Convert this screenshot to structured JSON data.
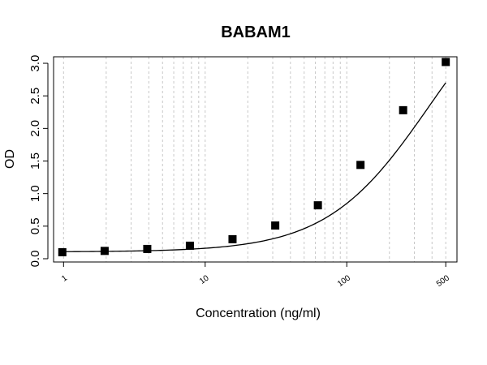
{
  "chart_data": {
    "type": "scatter",
    "title": "BABAM1",
    "xlabel": "Concentration (ng/ml)",
    "ylabel": "OD",
    "x_scale": "log",
    "xlim": [
      0.85,
      600
    ],
    "ylim": [
      -0.05,
      3.1
    ],
    "xticks": [
      {
        "value": 1,
        "label": "1"
      },
      {
        "value": 10,
        "label": "10"
      },
      {
        "value": 100,
        "label": "100"
      },
      {
        "value": 500,
        "label": "500"
      }
    ],
    "minor_xticks": [
      2,
      3,
      4,
      5,
      6,
      7,
      8,
      9,
      20,
      30,
      40,
      50,
      60,
      70,
      80,
      90,
      200,
      300,
      400
    ],
    "yticks": [
      {
        "value": 0.0,
        "label": "0.0"
      },
      {
        "value": 0.5,
        "label": "0.5"
      },
      {
        "value": 1.0,
        "label": "1.0"
      },
      {
        "value": 1.5,
        "label": "1.5"
      },
      {
        "value": 2.0,
        "label": "2.0"
      },
      {
        "value": 2.5,
        "label": "2.5"
      },
      {
        "value": 3.0,
        "label": "3.0"
      }
    ],
    "grid": "vertical-dashed",
    "series": [
      {
        "x": [
          0.98,
          1.95,
          3.9,
          7.8,
          15.6,
          31.25,
          62.5,
          125,
          250,
          500
        ],
        "y": [
          0.1,
          0.12,
          0.15,
          0.2,
          0.3,
          0.51,
          0.82,
          1.44,
          2.28,
          3.02
        ]
      }
    ],
    "fit_curve": {
      "model": "4PL",
      "bottom": 0.105,
      "top": 4.6,
      "ec50": 385,
      "hill": 1.2
    }
  }
}
